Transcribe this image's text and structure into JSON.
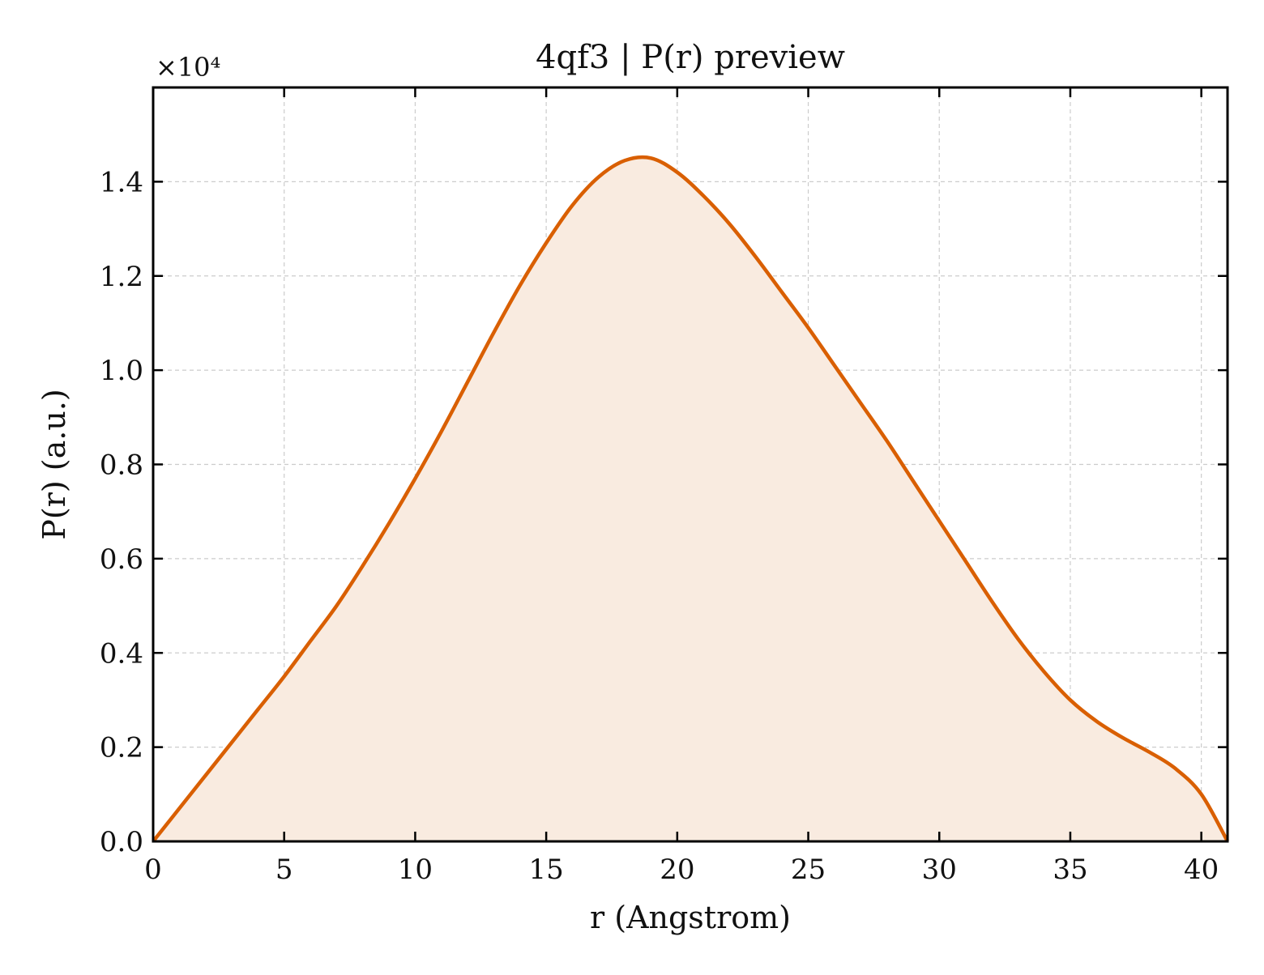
{
  "chart_data": {
    "type": "area",
    "title": "4qf3 | P(r) preview",
    "xlabel": "r (Angstrom)",
    "ylabel": "P(r) (a.u.)",
    "y_offset_label": "×10⁴",
    "y_multiplier": 10000,
    "xlim": [
      0,
      41
    ],
    "ylim": [
      0,
      1.6
    ],
    "xticks": [
      0,
      5,
      10,
      15,
      20,
      25,
      30,
      35,
      40
    ],
    "xtick_labels": [
      "0",
      "5",
      "10",
      "15",
      "20",
      "25",
      "30",
      "35",
      "40"
    ],
    "yticks": [
      0.0,
      0.2,
      0.4,
      0.6,
      0.8,
      1.0,
      1.2,
      1.4
    ],
    "ytick_labels": [
      "0.0",
      "0.2",
      "0.4",
      "0.6",
      "0.8",
      "1.0",
      "1.2",
      "1.4"
    ],
    "grid": true,
    "colors": {
      "line": "#d95f02",
      "fill": "#f9ebe0",
      "grid": "#cccccc"
    },
    "series": [
      {
        "x": [
          0,
          1,
          2,
          3,
          4,
          5,
          6,
          7,
          8,
          9,
          10,
          11,
          12,
          13,
          14,
          15,
          16,
          17,
          18,
          19,
          20,
          21,
          22,
          23,
          24,
          25,
          26,
          27,
          28,
          29,
          30,
          31,
          32,
          33,
          34,
          35,
          36,
          37,
          38,
          39,
          40,
          41
        ],
        "y": [
          0.0,
          0.07,
          0.14,
          0.21,
          0.28,
          0.35,
          0.425,
          0.5,
          0.585,
          0.675,
          0.77,
          0.87,
          0.975,
          1.08,
          1.18,
          1.27,
          1.35,
          1.41,
          1.445,
          1.45,
          1.42,
          1.37,
          1.31,
          1.24,
          1.165,
          1.09,
          1.01,
          0.93,
          0.85,
          0.765,
          0.68,
          0.595,
          0.51,
          0.43,
          0.36,
          0.3,
          0.255,
          0.22,
          0.19,
          0.155,
          0.1,
          0.0
        ]
      }
    ]
  }
}
